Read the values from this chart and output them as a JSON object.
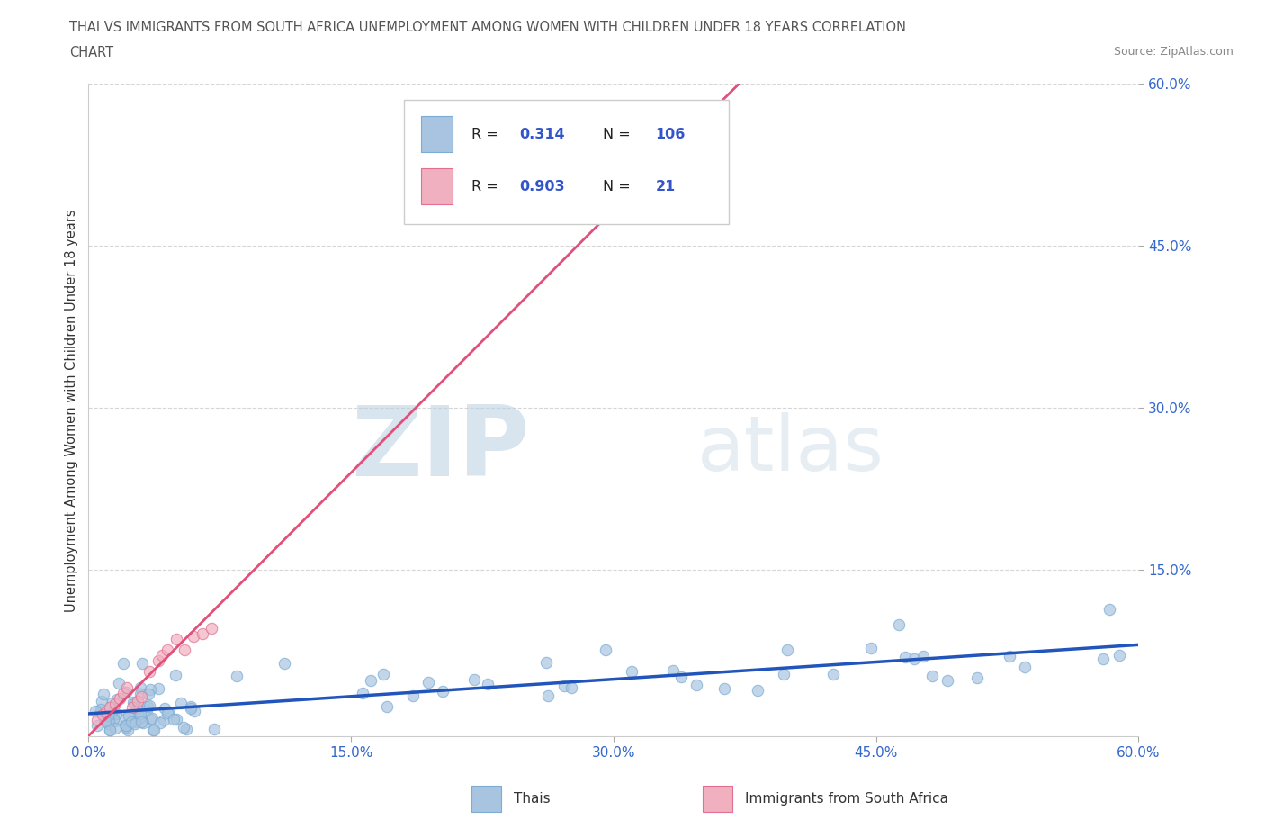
{
  "title_line1": "THAI VS IMMIGRANTS FROM SOUTH AFRICA UNEMPLOYMENT AMONG WOMEN WITH CHILDREN UNDER 18 YEARS CORRELATION",
  "title_line2": "CHART",
  "source": "Source: ZipAtlas.com",
  "ylabel": "Unemployment Among Women with Children Under 18 years",
  "xlim": [
    0.0,
    0.6
  ],
  "ylim": [
    -0.005,
    0.6
  ],
  "xticks": [
    0.0,
    0.15,
    0.3,
    0.45,
    0.6
  ],
  "yticks": [
    0.15,
    0.3,
    0.45,
    0.6
  ],
  "xtick_labels": [
    "0.0%",
    "15.0%",
    "30.0%",
    "45.0%",
    "60.0%"
  ],
  "ytick_labels": [
    "15.0%",
    "30.0%",
    "45.0%",
    "60.0%"
  ],
  "background_color": "#ffffff",
  "watermark_zip": "ZIP",
  "watermark_atlas": "atlas",
  "watermark_color": "#c8d8e8",
  "legend_r1": "0.314",
  "legend_n1": "106",
  "legend_r2": "0.903",
  "legend_n2": "21",
  "thai_color": "#a8c4e0",
  "thai_edge_color": "#7aacd4",
  "thai_line_color": "#2255bb",
  "sa_color": "#f0b0c0",
  "sa_edge_color": "#e07090",
  "sa_line_color": "#e0507a",
  "label1": "Thais",
  "label2": "Immigrants from South Africa",
  "blue_text": "#3355cc",
  "black_text": "#222222",
  "grid_color": "#cccccc",
  "title_color": "#555555",
  "tick_color": "#3366cc"
}
